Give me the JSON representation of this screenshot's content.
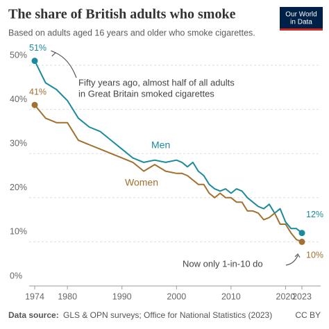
{
  "chart_data": {
    "type": "line",
    "title": "The share of British adults who smoke",
    "subtitle": "Based on adults aged 16 years and older who smoke cigarettes.",
    "logo": [
      "Our World",
      "in Data"
    ],
    "annotations": [
      [
        "Fifty years ago, almost half of all adults",
        "in Great Britain smoked cigarettes"
      ],
      [
        "Now only 1-in-10 do"
      ]
    ],
    "source_label": "Data source:",
    "source": "GLS & OPN surveys; Office for National Statistics (2023)",
    "license": "CC BY",
    "x": [
      1974,
      1976,
      1978,
      1980,
      1982,
      1984,
      1986,
      1988,
      1990,
      1992,
      1994,
      1996,
      1998,
      2000,
      2001,
      2002,
      2003,
      2004,
      2005,
      2006,
      2007,
      2008,
      2009,
      2010,
      2011,
      2012,
      2013,
      2014,
      2015,
      2016,
      2017,
      2018,
      2019,
      2020,
      2021,
      2022,
      2023
    ],
    "series": [
      {
        "name": "Men",
        "color": "#1a8a9c",
        "start_label": "51%",
        "end_label": "12%",
        "values": [
          51,
          46,
          44.5,
          42,
          38,
          36,
          35,
          33,
          31,
          29,
          28,
          28.5,
          28,
          28.5,
          28,
          27,
          28,
          26,
          25,
          23,
          22,
          21.5,
          22,
          21,
          22,
          21.5,
          20,
          19,
          18,
          17.5,
          18.5,
          16.5,
          17.5,
          14.5,
          13,
          13,
          12
        ]
      },
      {
        "name": "Women",
        "color": "#a2702f",
        "start_label": "41%",
        "end_label": "10%",
        "values": [
          41,
          38,
          37,
          37,
          33,
          32,
          31,
          30,
          29,
          28,
          26,
          27.5,
          26,
          25.5,
          25.5,
          25,
          24,
          23,
          23,
          21,
          20,
          21,
          20,
          20,
          19,
          19,
          17,
          17,
          16.5,
          15,
          15.5,
          16.5,
          14,
          14,
          12,
          10.5,
          10
        ]
      }
    ],
    "xlim": [
      1974,
      2023
    ],
    "xticks": [
      1974,
      1980,
      1990,
      2000,
      2010,
      2020,
      2023
    ],
    "ylim": [
      0,
      50
    ],
    "yticks": [
      {
        "value": 0,
        "label": "0%"
      },
      {
        "value": 10,
        "label": "10%"
      },
      {
        "value": 20,
        "label": "20%"
      },
      {
        "value": 30,
        "label": "30%"
      },
      {
        "value": 40,
        "label": "40%"
      },
      {
        "value": 50,
        "label": "50%"
      }
    ],
    "grid": true
  }
}
